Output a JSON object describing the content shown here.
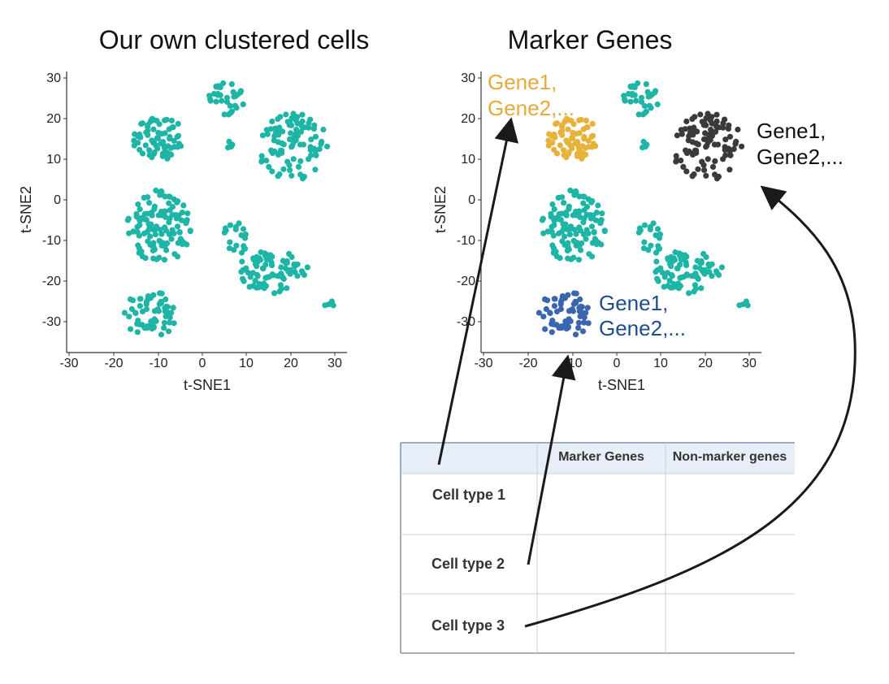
{
  "left_panel": {
    "title": "Our own clustered cells",
    "xlabel": "t-SNE1",
    "ylabel": "t-SNE2",
    "x_ticks": [
      "-30",
      "-20",
      "-10",
      "0",
      "10",
      "20",
      "30"
    ],
    "y_ticks": [
      "30",
      "20",
      "10",
      "0",
      "-10",
      "-20",
      "-30"
    ]
  },
  "right_panel": {
    "title": "Marker Genes",
    "xlabel": "t-SNE1",
    "ylabel": "t-SNE2",
    "x_ticks": [
      "-30",
      "-20",
      "-10",
      "0",
      "10",
      "20",
      "30"
    ],
    "y_ticks": [
      "30",
      "20",
      "10",
      "0",
      "-10",
      "-20",
      "-30"
    ],
    "gene_labels": [
      {
        "line1": "Gene1,",
        "line2": "Gene2,...",
        "color": "#e8a93a"
      },
      {
        "line1": "Gene1,",
        "line2": "Gene2,...",
        "color": "#111111"
      },
      {
        "line1": "Gene1,",
        "line2": "Gene2,...",
        "color": "#1f4e8c"
      }
    ]
  },
  "colors": {
    "default_cluster": "#1eb5a6",
    "highlight_orange": "#e6b23a",
    "highlight_black": "#3a3a3a",
    "highlight_blue": "#3a66b0",
    "table_header_bg": "#e8eef7"
  },
  "table": {
    "headers": [
      "",
      "Marker Genes",
      "Non-marker genes"
    ],
    "rows": [
      {
        "label": "Cell type 1"
      },
      {
        "label": "Cell type 2"
      },
      {
        "label": "Cell type 3"
      }
    ]
  }
}
